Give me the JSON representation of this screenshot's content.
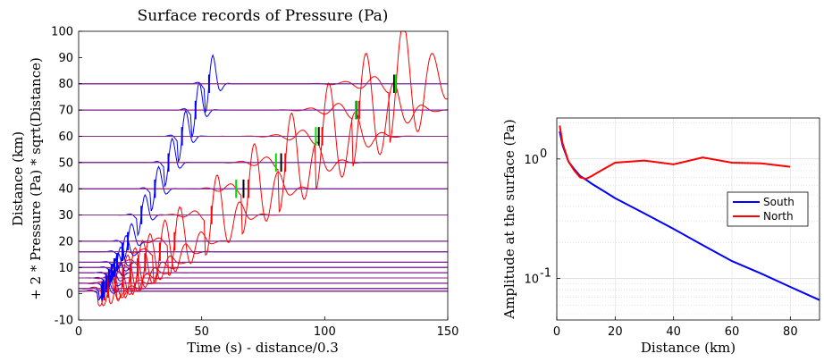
{
  "chart_data": [
    {
      "type": "line",
      "title": "Surface records of Pressure (Pa)",
      "xlabel": "Time (s) - distance/0.3",
      "ylabel_line1": "Distance (km)",
      "ylabel_line2": "+ 2 * Pressure (Pa) * sqrt(Distance)",
      "xlim": [
        0,
        150
      ],
      "ylim": [
        -10,
        100
      ],
      "xticks": [
        "0",
        "50",
        "100",
        "150"
      ],
      "yticks": [
        "-10",
        "0",
        "10",
        "20",
        "30",
        "40",
        "50",
        "60",
        "70",
        "80",
        "90",
        "100"
      ],
      "grid": false,
      "distances": [
        1,
        2,
        4,
        6,
        8,
        10,
        12,
        16,
        20,
        30,
        40,
        50,
        60,
        70,
        80
      ],
      "colors": {
        "south": "#0000ff",
        "north": "#ff0000",
        "green": "#00dd00",
        "black": "#000000"
      }
    },
    {
      "type": "line",
      "xlabel": "Distance (km)",
      "ylabel": "Amplitude at the surface (Pa)",
      "xlim": [
        0,
        90
      ],
      "ylim": [
        0.045,
        2.2
      ],
      "yscale": "log",
      "grid": true,
      "legend_position": "right",
      "xticks": [
        "0",
        "20",
        "40",
        "60",
        "80"
      ],
      "yticks": [
        {
          "value": 0.1,
          "label": "10",
          "exp": "-1"
        },
        {
          "value": 1.0,
          "label": "10",
          "exp": "0"
        }
      ],
      "series": [
        {
          "name": "South",
          "color": "#0000ff",
          "x": [
            1,
            2,
            4,
            6,
            8,
            10,
            12,
            16,
            20,
            30,
            40,
            50,
            60,
            70,
            80,
            90
          ],
          "y": [
            1.7,
            1.3,
            0.95,
            0.82,
            0.72,
            0.67,
            0.62,
            0.54,
            0.47,
            0.35,
            0.26,
            0.19,
            0.14,
            0.11,
            0.085,
            0.066
          ]
        },
        {
          "name": "North",
          "color": "#ff0000",
          "x": [
            1,
            2,
            4,
            6,
            8,
            10,
            12,
            16,
            20,
            30,
            40,
            50,
            60,
            70,
            80
          ],
          "y": [
            1.9,
            1.35,
            0.95,
            0.8,
            0.7,
            0.68,
            0.72,
            0.82,
            0.93,
            0.97,
            0.9,
            1.03,
            0.93,
            0.92,
            0.86
          ]
        }
      ]
    }
  ]
}
